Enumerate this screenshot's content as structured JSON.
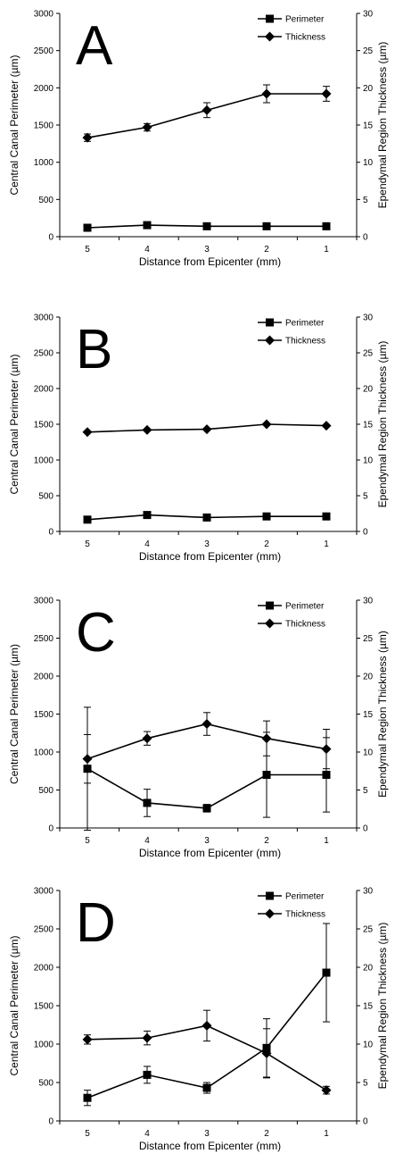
{
  "figure": {
    "shared_axes": {
      "x_label": "Distance from Epicenter (mm)",
      "left_y_label": "Central Canal Perimeter (µm)",
      "right_y_label": "Ependymal Region Thickness (µm)",
      "x_categories": [
        "5",
        "4",
        "3",
        "2",
        "1"
      ],
      "left_ticks": [
        "0",
        "500",
        "1000",
        "1500",
        "2000",
        "2500",
        "3000"
      ],
      "right_ticks": [
        "0",
        "5",
        "10",
        "15",
        "20",
        "25",
        "30"
      ]
    },
    "legend": {
      "series": [
        "Perimeter",
        "Thickness"
      ]
    }
  },
  "chart_data": [
    {
      "type": "line",
      "panel": "A",
      "categories": [
        "5",
        "4",
        "3",
        "2",
        "1"
      ],
      "xlabel": "Distance from Epicenter (mm)",
      "ylabel": "Central Canal Perimeter (µm)",
      "y2label": "Ependymal Region Thickness (µm)",
      "ylim": [
        0,
        3000
      ],
      "y2lim": [
        0,
        30
      ],
      "legend": "top-right",
      "series": [
        {
          "name": "Perimeter",
          "axis": "left",
          "marker": "square",
          "values": [
            120,
            155,
            140,
            140,
            140
          ],
          "errors": [
            0,
            0,
            0,
            0,
            0
          ]
        },
        {
          "name": "Thickness",
          "axis": "right",
          "marker": "diamond",
          "values": [
            13.3,
            14.7,
            17.0,
            19.2,
            19.2
          ],
          "errors": [
            0.5,
            0.5,
            1.0,
            1.2,
            1.0
          ]
        }
      ]
    },
    {
      "type": "line",
      "panel": "B",
      "categories": [
        "5",
        "4",
        "3",
        "2",
        "1"
      ],
      "xlabel": "Distance from Epicenter (mm)",
      "ylabel": "Central Canal Perimeter (µm)",
      "y2label": "Ependymal Region Thickness (µm)",
      "ylim": [
        0,
        3000
      ],
      "y2lim": [
        0,
        30
      ],
      "legend": "top-right",
      "series": [
        {
          "name": "Perimeter",
          "axis": "left",
          "marker": "square",
          "values": [
            165,
            230,
            195,
            210,
            210
          ],
          "errors": [
            0,
            0,
            0,
            0,
            0
          ]
        },
        {
          "name": "Thickness",
          "axis": "right",
          "marker": "diamond",
          "values": [
            13.9,
            14.2,
            14.3,
            15.0,
            14.8
          ],
          "errors": [
            0,
            0,
            0,
            0,
            0
          ]
        }
      ]
    },
    {
      "type": "line",
      "panel": "C",
      "categories": [
        "5",
        "4",
        "3",
        "2",
        "1"
      ],
      "xlabel": "Distance from Epicenter (mm)",
      "ylabel": "Central Canal Perimeter (µm)",
      "y2label": "Ependymal Region Thickness (µm)",
      "ylim": [
        0,
        3000
      ],
      "y2lim": [
        0,
        30
      ],
      "legend": "top-right",
      "series": [
        {
          "name": "Perimeter",
          "axis": "left",
          "marker": "square",
          "values": [
            780,
            330,
            260,
            700,
            700
          ],
          "errors": [
            810,
            180,
            50,
            560,
            490
          ]
        },
        {
          "name": "Thickness",
          "axis": "right",
          "marker": "diamond",
          "values": [
            9.1,
            11.8,
            13.7,
            11.8,
            10.4
          ],
          "errors": [
            3.2,
            0.9,
            1.5,
            2.3,
            2.6
          ]
        }
      ]
    },
    {
      "type": "line",
      "panel": "D",
      "categories": [
        "5",
        "4",
        "3",
        "2",
        "1"
      ],
      "xlabel": "Distance from Epicenter (mm)",
      "ylabel": "Central Canal Perimeter (µm)",
      "y2label": "Ependymal Region Thickness (µm)",
      "ylim": [
        0,
        3000
      ],
      "y2lim": [
        0,
        30
      ],
      "legend": "top-right",
      "series": [
        {
          "name": "Perimeter",
          "axis": "left",
          "marker": "square",
          "values": [
            300,
            600,
            430,
            950,
            1930
          ],
          "errors": [
            100,
            110,
            70,
            380,
            640
          ]
        },
        {
          "name": "Thickness",
          "axis": "right",
          "marker": "diamond",
          "values": [
            10.6,
            10.8,
            12.4,
            8.8,
            4.0
          ],
          "errors": [
            0.6,
            0.9,
            2.0,
            3.2,
            0.5
          ]
        }
      ]
    }
  ]
}
